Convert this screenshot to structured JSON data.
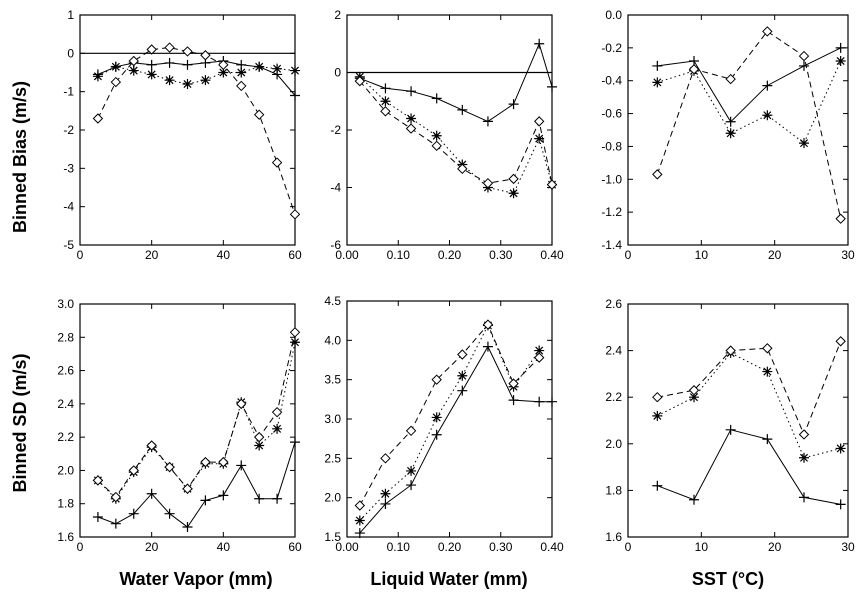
{
  "row_labels": [
    "Binned Bias (m/s)",
    "Binned SD (m/s)"
  ],
  "column_labels": [
    "Water Vapor (mm)",
    "Liquid Water (mm)",
    "SST (°C)"
  ],
  "chart_data": [
    {
      "type": "line",
      "xlim": [
        0,
        60
      ],
      "ylim": [
        -5,
        1
      ],
      "xticks": [
        "0",
        "20",
        "40",
        "60"
      ],
      "yticks": [
        "-5",
        "-4",
        "-3",
        "-2",
        "-1",
        "0",
        "1"
      ],
      "zero_line": true,
      "series": [
        {
          "marker": "plus",
          "dash": "solid",
          "x": [
            5,
            10,
            15,
            20,
            25,
            30,
            35,
            40,
            45,
            50,
            55,
            60
          ],
          "y": [
            -0.55,
            -0.35,
            -0.25,
            -0.3,
            -0.25,
            -0.3,
            -0.25,
            -0.2,
            -0.3,
            -0.35,
            -0.55,
            -1.1
          ]
        },
        {
          "marker": "star",
          "dash": "dotted",
          "x": [
            5,
            10,
            15,
            20,
            25,
            30,
            35,
            40,
            45,
            50,
            55,
            60
          ],
          "y": [
            -0.6,
            -0.35,
            -0.45,
            -0.55,
            -0.7,
            -0.8,
            -0.7,
            -0.5,
            -0.5,
            -0.35,
            -0.4,
            -0.45
          ]
        },
        {
          "marker": "diamond",
          "dash": "dashed",
          "x": [
            5,
            10,
            15,
            20,
            25,
            30,
            35,
            40,
            45,
            50,
            55,
            60
          ],
          "y": [
            -1.7,
            -0.75,
            -0.2,
            0.1,
            0.15,
            0.05,
            -0.05,
            -0.3,
            -0.85,
            -1.6,
            -2.85,
            -4.2
          ]
        }
      ]
    },
    {
      "type": "line",
      "xlim": [
        0,
        0.4
      ],
      "ylim": [
        -6,
        2
      ],
      "xticks": [
        "0.00",
        "0.10",
        "0.20",
        "0.30",
        "0.40"
      ],
      "yticks": [
        "-6",
        "-4",
        "-2",
        "0",
        "2"
      ],
      "zero_line": true,
      "series": [
        {
          "marker": "plus",
          "dash": "solid",
          "x": [
            0.025,
            0.075,
            0.125,
            0.175,
            0.225,
            0.275,
            0.325,
            0.375,
            0.4
          ],
          "y": [
            -0.2,
            -0.55,
            -0.65,
            -0.9,
            -1.3,
            -1.7,
            -1.1,
            1.0,
            -0.5
          ]
        },
        {
          "marker": "star",
          "dash": "dotted",
          "x": [
            0.025,
            0.075,
            0.125,
            0.175,
            0.225,
            0.275,
            0.325,
            0.375,
            0.4
          ],
          "y": [
            -0.15,
            -1.0,
            -1.6,
            -2.2,
            -3.2,
            -4.0,
            -4.2,
            -2.3,
            -3.9
          ]
        },
        {
          "marker": "diamond",
          "dash": "dashed",
          "x": [
            0.025,
            0.075,
            0.125,
            0.175,
            0.225,
            0.275,
            0.325,
            0.375,
            0.4
          ],
          "y": [
            -0.3,
            -1.35,
            -1.95,
            -2.55,
            -3.35,
            -3.85,
            -3.7,
            -1.7,
            -3.9
          ]
        }
      ]
    },
    {
      "type": "line",
      "xlim": [
        0,
        30
      ],
      "ylim": [
        -1.4,
        0.0
      ],
      "xticks": [
        "0",
        "10",
        "20",
        "30"
      ],
      "yticks": [
        "-1.4",
        "-1.2",
        "-1.0",
        "-0.8",
        "-0.6",
        "-0.4",
        "-0.2",
        "0.0"
      ],
      "zero_line": false,
      "series": [
        {
          "marker": "plus",
          "dash": "solid",
          "x": [
            4,
            9,
            14,
            19,
            24,
            29
          ],
          "y": [
            -0.31,
            -0.28,
            -0.65,
            -0.43,
            -0.31,
            -0.2
          ]
        },
        {
          "marker": "star",
          "dash": "dotted",
          "x": [
            4,
            9,
            14,
            19,
            24,
            29
          ],
          "y": [
            -0.41,
            -0.34,
            -0.72,
            -0.61,
            -0.78,
            -0.28
          ]
        },
        {
          "marker": "diamond",
          "dash": "dashed",
          "x": [
            4,
            9,
            14,
            19,
            24,
            29
          ],
          "y": [
            -0.97,
            -0.33,
            -0.39,
            -0.1,
            -0.25,
            -1.24
          ]
        }
      ]
    },
    {
      "type": "line",
      "xlim": [
        0,
        60
      ],
      "ylim": [
        1.6,
        3.0
      ],
      "xticks": [
        "0",
        "20",
        "40",
        "60"
      ],
      "yticks": [
        "1.6",
        "1.8",
        "2.0",
        "2.2",
        "2.4",
        "2.6",
        "2.8",
        "3.0"
      ],
      "zero_line": false,
      "series": [
        {
          "marker": "plus",
          "dash": "solid",
          "x": [
            5,
            10,
            15,
            20,
            25,
            30,
            35,
            40,
            45,
            50,
            55,
            60
          ],
          "y": [
            1.72,
            1.68,
            1.74,
            1.86,
            1.74,
            1.66,
            1.82,
            1.85,
            2.03,
            1.83,
            1.83,
            2.17
          ]
        },
        {
          "marker": "star",
          "dash": "dotted",
          "x": [
            5,
            10,
            15,
            20,
            25,
            30,
            35,
            40,
            45,
            50,
            55,
            60
          ],
          "y": [
            1.94,
            1.83,
            1.99,
            2.14,
            2.02,
            1.89,
            2.04,
            2.04,
            2.41,
            2.15,
            2.25,
            2.77
          ]
        },
        {
          "marker": "diamond",
          "dash": "dashed",
          "x": [
            5,
            10,
            15,
            20,
            25,
            30,
            35,
            40,
            45,
            50,
            55,
            60
          ],
          "y": [
            1.94,
            1.84,
            2.0,
            2.15,
            2.02,
            1.89,
            2.05,
            2.05,
            2.4,
            2.2,
            2.35,
            2.83
          ]
        }
      ]
    },
    {
      "type": "line",
      "xlim": [
        0,
        0.4
      ],
      "ylim": [
        1.5,
        4.5
      ],
      "xticks": [
        "0.00",
        "0.10",
        "0.20",
        "0.30",
        "0.40"
      ],
      "yticks": [
        "1.5",
        "2.0",
        "2.5",
        "3.0",
        "3.5",
        "4.0",
        "4.5"
      ],
      "zero_line": false,
      "series": [
        {
          "marker": "plus",
          "dash": "solid",
          "x": [
            0.025,
            0.075,
            0.125,
            0.175,
            0.225,
            0.275,
            0.325,
            0.375,
            0.4
          ],
          "y": [
            1.55,
            1.92,
            2.16,
            2.8,
            3.36,
            3.92,
            3.24,
            3.22,
            3.22
          ]
        },
        {
          "marker": "star",
          "dash": "dotted",
          "x": [
            0.025,
            0.075,
            0.125,
            0.175,
            0.225,
            0.275,
            0.325,
            0.375
          ],
          "y": [
            1.71,
            2.05,
            2.34,
            3.02,
            3.55,
            4.19,
            3.41,
            3.87
          ]
        },
        {
          "marker": "diamond",
          "dash": "dashed",
          "x": [
            0.025,
            0.075,
            0.125,
            0.175,
            0.225,
            0.275,
            0.325,
            0.375
          ],
          "y": [
            1.9,
            2.5,
            2.85,
            3.5,
            3.82,
            4.2,
            3.45,
            3.78
          ]
        }
      ]
    },
    {
      "type": "line",
      "xlim": [
        0,
        30
      ],
      "ylim": [
        1.6,
        2.6
      ],
      "xticks": [
        "0",
        "10",
        "20",
        "30"
      ],
      "yticks": [
        "1.6",
        "1.8",
        "2.0",
        "2.2",
        "2.4",
        "2.6"
      ],
      "zero_line": false,
      "series": [
        {
          "marker": "plus",
          "dash": "solid",
          "x": [
            4,
            9,
            14,
            19,
            24,
            29
          ],
          "y": [
            1.82,
            1.76,
            2.06,
            2.02,
            1.77,
            1.74
          ]
        },
        {
          "marker": "star",
          "dash": "dotted",
          "x": [
            4,
            9,
            14,
            19,
            24,
            29
          ],
          "y": [
            2.12,
            2.2,
            2.39,
            2.31,
            1.94,
            1.98
          ]
        },
        {
          "marker": "diamond",
          "dash": "dashed",
          "x": [
            4,
            9,
            14,
            19,
            24,
            29
          ],
          "y": [
            2.2,
            2.23,
            2.4,
            2.41,
            2.04,
            2.44
          ]
        }
      ]
    }
  ]
}
